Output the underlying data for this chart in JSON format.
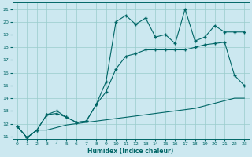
{
  "title": "",
  "xlabel": "Humidex (Indice chaleur)",
  "bg_color": "#cce8f0",
  "grid_color": "#99cccc",
  "line_color": "#006666",
  "xlim": [
    -0.5,
    23.5
  ],
  "ylim": [
    10.8,
    21.5
  ],
  "yticks": [
    11,
    12,
    13,
    14,
    15,
    16,
    17,
    18,
    19,
    20,
    21
  ],
  "xticks": [
    0,
    1,
    2,
    3,
    4,
    5,
    6,
    7,
    8,
    9,
    10,
    11,
    12,
    13,
    14,
    15,
    16,
    17,
    18,
    19,
    20,
    21,
    22,
    23
  ],
  "s1_x": [
    0,
    1,
    2,
    3,
    4,
    5,
    6,
    7,
    8,
    9,
    10,
    11,
    12,
    13,
    14,
    15,
    16,
    17,
    18,
    19,
    20,
    21,
    22,
    23
  ],
  "s1_y": [
    11.8,
    10.9,
    11.5,
    11.5,
    11.7,
    11.9,
    12.0,
    12.1,
    12.2,
    12.3,
    12.4,
    12.5,
    12.6,
    12.7,
    12.8,
    12.9,
    13.0,
    13.1,
    13.2,
    13.4,
    13.6,
    13.8,
    14.0,
    14.0
  ],
  "s2_x": [
    0,
    1,
    2,
    3,
    4,
    5,
    6,
    7,
    8,
    9,
    10,
    11,
    12,
    13,
    14,
    15,
    16,
    17,
    18,
    19,
    20,
    21,
    22,
    23
  ],
  "s2_y": [
    11.8,
    10.9,
    11.5,
    12.7,
    13.0,
    12.5,
    12.1,
    12.2,
    13.5,
    14.5,
    16.3,
    17.3,
    17.5,
    17.8,
    17.8,
    17.8,
    17.8,
    17.8,
    18.0,
    18.2,
    18.3,
    18.4,
    15.8,
    15.0
  ],
  "s3_x": [
    0,
    1,
    2,
    3,
    4,
    5,
    6,
    7,
    8,
    9,
    10,
    11,
    12,
    13,
    14,
    15,
    16,
    17,
    18,
    19,
    20,
    21,
    22,
    23
  ],
  "s3_y": [
    11.8,
    10.9,
    11.5,
    12.7,
    12.8,
    12.5,
    12.1,
    12.2,
    13.5,
    15.3,
    20.0,
    20.5,
    19.8,
    20.3,
    18.8,
    19.0,
    18.3,
    21.0,
    18.5,
    18.8,
    19.7,
    19.2,
    19.2,
    19.2
  ]
}
